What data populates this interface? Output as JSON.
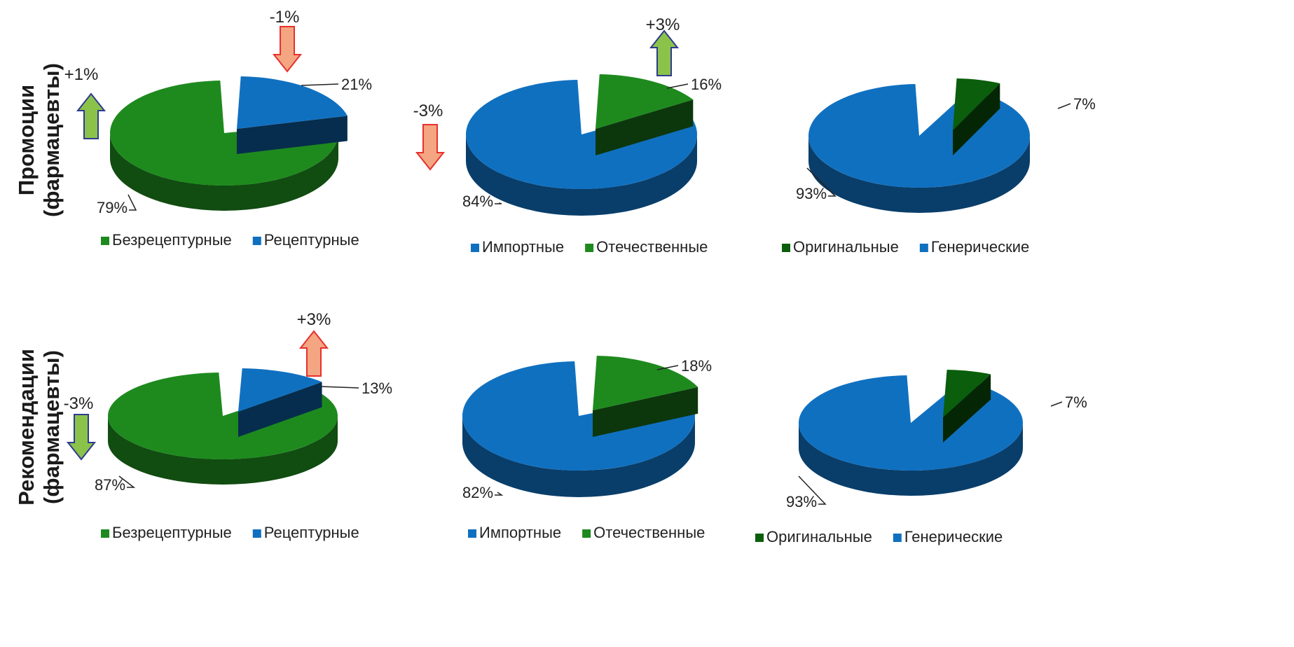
{
  "row_labels": [
    {
      "line1": "Промоции",
      "line2": "(фармацевты)"
    },
    {
      "line1": "Рекомендации",
      "line2": "(фармацевты)"
    }
  ],
  "colors": {
    "green": "#1e8a1e",
    "blue": "#1070c0",
    "dark_green": "#0b5e0b",
    "arrow_green": "#8bc34a",
    "arrow_red": "#f4a582",
    "arrow_red_stroke": "#e8302c",
    "arrow_green_stroke": "#2f3a8f"
  },
  "chart_data": [
    {
      "type": "pie",
      "row": 0,
      "col": 0,
      "slices": [
        {
          "label": "Безрецептурные",
          "value": 79,
          "label_text": "79%",
          "color": "green"
        },
        {
          "label": "Рецептурные",
          "value": 21,
          "label_text": "21%",
          "color": "blue"
        }
      ],
      "legend": [
        "Безрецептурные",
        "Рецептурные"
      ],
      "changes": [
        {
          "text": "+1%",
          "direction": "up",
          "style": "green"
        },
        {
          "text": "-1%",
          "direction": "down",
          "style": "red"
        }
      ]
    },
    {
      "type": "pie",
      "row": 0,
      "col": 1,
      "slices": [
        {
          "label": "Импортные",
          "value": 84,
          "label_text": "84%",
          "color": "blue"
        },
        {
          "label": "Отечественные",
          "value": 16,
          "label_text": "16%",
          "color": "green"
        }
      ],
      "legend": [
        "Импортные",
        "Отечественные"
      ],
      "changes": [
        {
          "text": "-3%",
          "direction": "down",
          "style": "red"
        },
        {
          "text": "+3%",
          "direction": "up",
          "style": "green"
        }
      ]
    },
    {
      "type": "pie",
      "row": 0,
      "col": 2,
      "slices": [
        {
          "label": "Генерические",
          "value": 93,
          "label_text": "93%",
          "color": "blue"
        },
        {
          "label": "Оригинальные",
          "value": 7,
          "label_text": "7%",
          "color": "dark_green"
        }
      ],
      "legend": [
        "Оригинальные",
        "Генерические"
      ],
      "changes": []
    },
    {
      "type": "pie",
      "row": 1,
      "col": 0,
      "slices": [
        {
          "label": "Безрецептурные",
          "value": 87,
          "label_text": "87%",
          "color": "green"
        },
        {
          "label": "Рецептурные",
          "value": 13,
          "label_text": "13%",
          "color": "blue"
        }
      ],
      "legend": [
        "Безрецептурные",
        "Рецептурные"
      ],
      "changes": [
        {
          "text": "-3%",
          "direction": "down",
          "style": "green"
        },
        {
          "text": "+3%",
          "direction": "up",
          "style": "red"
        }
      ]
    },
    {
      "type": "pie",
      "row": 1,
      "col": 1,
      "slices": [
        {
          "label": "Импортные",
          "value": 82,
          "label_text": "82%",
          "color": "blue"
        },
        {
          "label": "Отечественные",
          "value": 18,
          "label_text": "18%",
          "color": "green"
        }
      ],
      "legend": [
        "Импортные",
        "Отечественные"
      ],
      "changes": []
    },
    {
      "type": "pie",
      "row": 1,
      "col": 2,
      "slices": [
        {
          "label": "Генерические",
          "value": 93,
          "label_text": "93%",
          "color": "blue"
        },
        {
          "label": "Оригинальные",
          "value": 7,
          "label_text": "7%",
          "color": "dark_green"
        }
      ],
      "legend": [
        "Оригинальные",
        "Генерические"
      ],
      "changes": []
    }
  ]
}
